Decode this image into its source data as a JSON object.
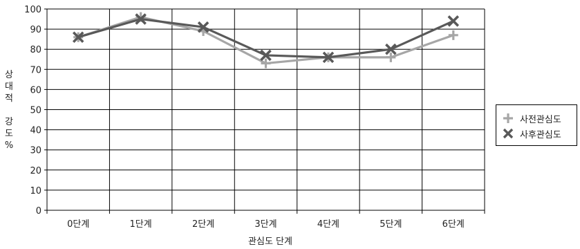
{
  "chart_data": {
    "type": "line",
    "categories": [
      "0단계",
      "1단계",
      "2단계",
      "3단계",
      "4단계",
      "5단계",
      "6단계"
    ],
    "series": [
      {
        "name": "사전관심도",
        "values": [
          86,
          96,
          89,
          73,
          76,
          76,
          87
        ],
        "color": "#a6a6a6",
        "marker": "plus"
      },
      {
        "name": "사후관심도",
        "values": [
          86,
          95,
          91,
          77,
          76,
          80,
          94
        ],
        "color": "#595959",
        "marker": "x"
      }
    ],
    "xlabel": "관심도 단계",
    "ylabel_lines": [
      "상",
      "대",
      "적",
      "",
      "강",
      "도",
      "%"
    ],
    "ylim": [
      0,
      100
    ],
    "yticks": [
      0,
      10,
      20,
      30,
      40,
      50,
      60,
      70,
      80,
      90,
      100
    ],
    "grid": true,
    "legend_position": "right"
  }
}
